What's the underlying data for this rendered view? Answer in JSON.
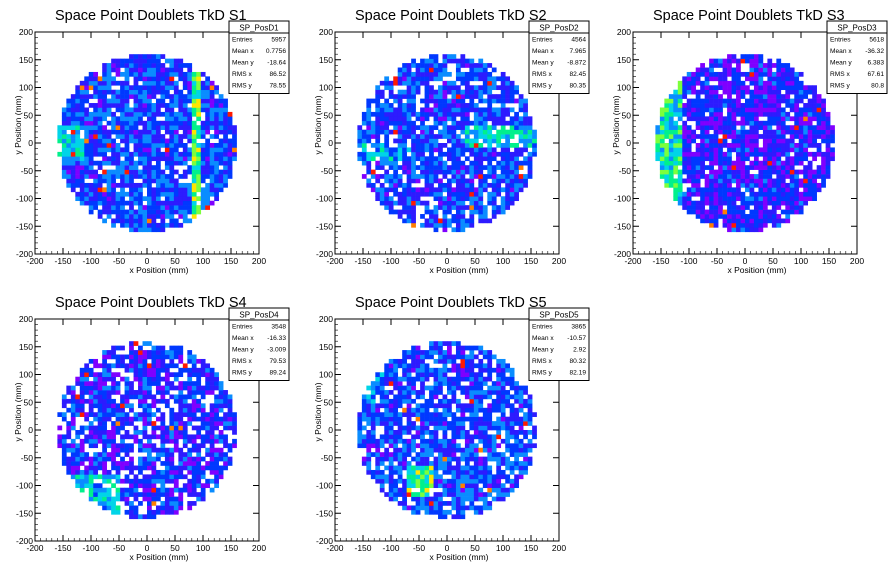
{
  "chart_data": [
    {
      "type": "heatmap",
      "title": "Space Point Doublets TkD S1",
      "xlabel": "x Position (mm)",
      "ylabel": "y Position (mm)",
      "xlim": [
        -200,
        200
      ],
      "ylim": [
        -200,
        200
      ],
      "xticks": [
        -200,
        -150,
        -100,
        -50,
        0,
        50,
        100,
        150,
        200
      ],
      "yticks": [
        -200,
        -150,
        -100,
        -50,
        0,
        50,
        100,
        150,
        200
      ],
      "legend_position": "top-right",
      "stats": {
        "name": "SP_PosD1",
        "rows": [
          {
            "label": "Entries",
            "value": "5957"
          },
          {
            "label": "Mean x",
            "value": "0.7756"
          },
          {
            "label": "Mean y",
            "value": "-18.64"
          },
          {
            "label": "RMS x",
            "value": "86.52"
          },
          {
            "label": "RMS y",
            "value": "78.55"
          }
        ]
      }
    },
    {
      "type": "heatmap",
      "title": "Space Point Doublets TkD S2",
      "xlabel": "x Position (mm)",
      "ylabel": "y Position (mm)",
      "xlim": [
        -200,
        200
      ],
      "ylim": [
        -200,
        200
      ],
      "xticks": [
        -200,
        -150,
        -100,
        -50,
        0,
        50,
        100,
        150,
        200
      ],
      "yticks": [
        -200,
        -150,
        -100,
        -50,
        0,
        50,
        100,
        150,
        200
      ],
      "legend_position": "top-right",
      "stats": {
        "name": "SP_PosD2",
        "rows": [
          {
            "label": "Entries",
            "value": "4564"
          },
          {
            "label": "Mean x",
            "value": "7.965"
          },
          {
            "label": "Mean y",
            "value": "-8.872"
          },
          {
            "label": "RMS x",
            "value": "82.45"
          },
          {
            "label": "RMS y",
            "value": "80.35"
          }
        ]
      }
    },
    {
      "type": "heatmap",
      "title": "Space Point Doublets TkD S3",
      "xlabel": "x Position (mm)",
      "ylabel": "y Position (mm)",
      "xlim": [
        -200,
        200
      ],
      "ylim": [
        -200,
        200
      ],
      "xticks": [
        -200,
        -150,
        -100,
        -50,
        0,
        50,
        100,
        150,
        200
      ],
      "yticks": [
        -200,
        -150,
        -100,
        -50,
        0,
        50,
        100,
        150,
        200
      ],
      "legend_position": "top-right",
      "stats": {
        "name": "SP_PosD3",
        "rows": [
          {
            "label": "Entries",
            "value": "5618"
          },
          {
            "label": "Mean x",
            "value": "-36.32"
          },
          {
            "label": "Mean y",
            "value": "6.383"
          },
          {
            "label": "RMS x",
            "value": "67.61"
          },
          {
            "label": "RMS y",
            "value": "80.8"
          }
        ]
      }
    },
    {
      "type": "heatmap",
      "title": "Space Point Doublets TkD S4",
      "xlabel": "x Position (mm)",
      "ylabel": "y Position (mm)",
      "xlim": [
        -200,
        200
      ],
      "ylim": [
        -200,
        200
      ],
      "xticks": [
        -200,
        -150,
        -100,
        -50,
        0,
        50,
        100,
        150,
        200
      ],
      "yticks": [
        -200,
        -150,
        -100,
        -50,
        0,
        50,
        100,
        150,
        200
      ],
      "legend_position": "top-right",
      "stats": {
        "name": "SP_PosD4",
        "rows": [
          {
            "label": "Entries",
            "value": "3548"
          },
          {
            "label": "Mean x",
            "value": "-16.33"
          },
          {
            "label": "Mean y",
            "value": "-3.009"
          },
          {
            "label": "RMS x",
            "value": "79.53"
          },
          {
            "label": "RMS y",
            "value": "89.24"
          }
        ]
      }
    },
    {
      "type": "heatmap",
      "title": "Space Point Doublets TkD S5",
      "xlabel": "x Position (mm)",
      "ylabel": "y Position (mm)",
      "xlim": [
        -200,
        200
      ],
      "ylim": [
        -200,
        200
      ],
      "xticks": [
        -200,
        -150,
        -100,
        -50,
        0,
        50,
        100,
        150,
        200
      ],
      "yticks": [
        -200,
        -150,
        -100,
        -50,
        0,
        50,
        100,
        150,
        200
      ],
      "legend_position": "top-right",
      "stats": {
        "name": "SP_PosD5",
        "rows": [
          {
            "label": "Entries",
            "value": "3865"
          },
          {
            "label": "Mean x",
            "value": "-10.57"
          },
          {
            "label": "Mean y",
            "value": "2.92"
          },
          {
            "label": "RMS x",
            "value": "80.32"
          },
          {
            "label": "RMS y",
            "value": "82.19"
          }
        ]
      }
    }
  ],
  "colors": {
    "background": "#ffffff",
    "frame": "#000000",
    "palette": [
      "#7f00ff",
      "#2d1bff",
      "#0038ff",
      "#0a8cff",
      "#00d4e8",
      "#00f08c",
      "#7cff3c",
      "#ffe600",
      "#ff7f00",
      "#ff1a00"
    ]
  }
}
